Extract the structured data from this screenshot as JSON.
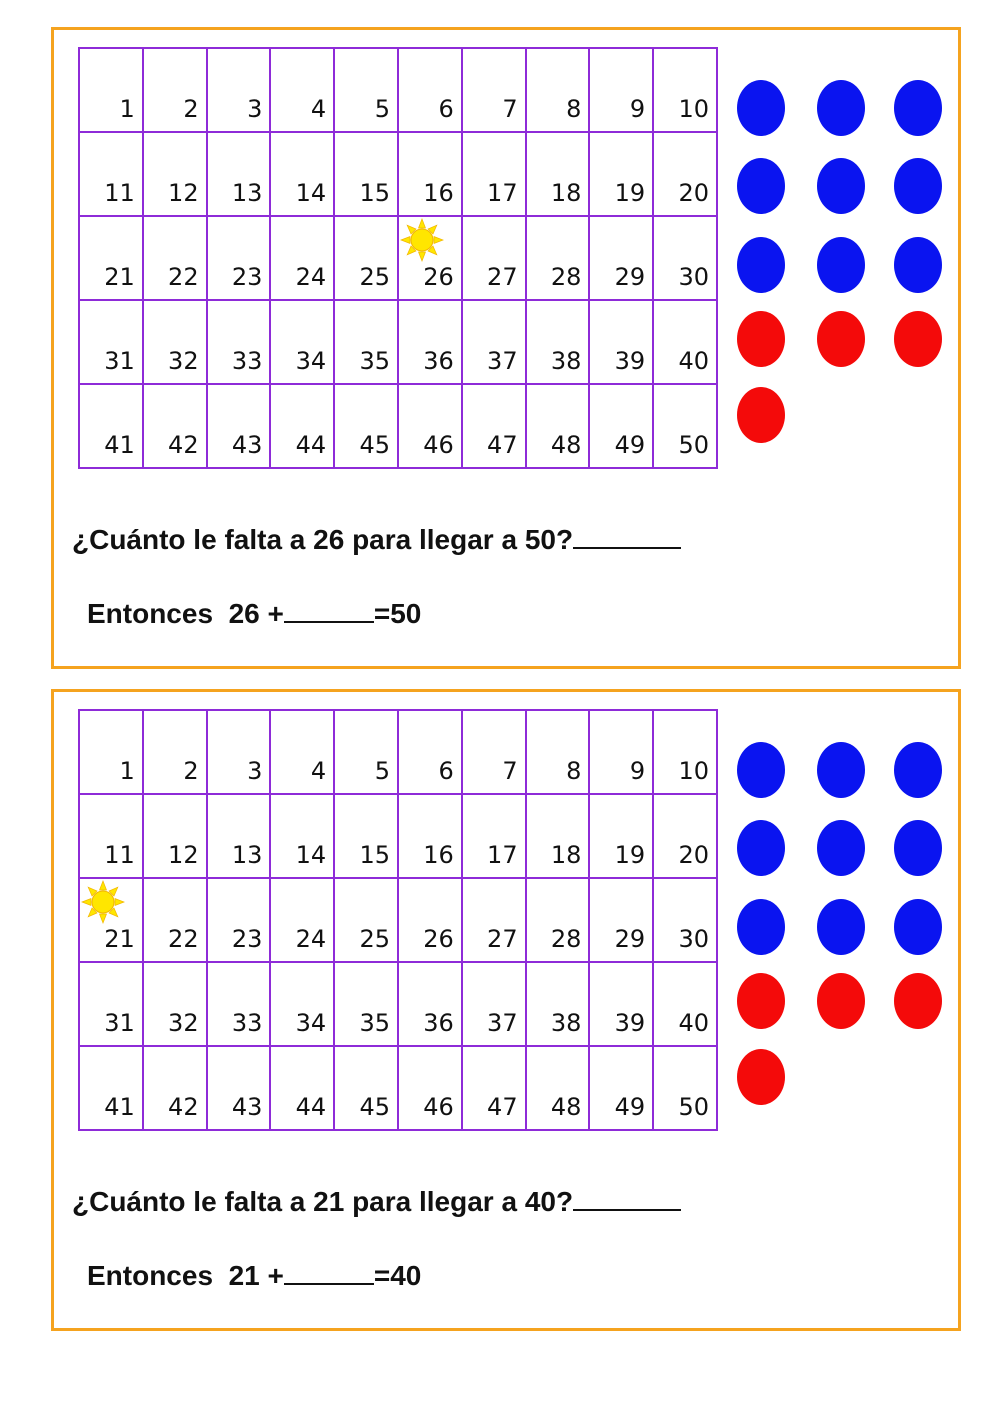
{
  "colors": {
    "border": "#F5A31F",
    "grid": "#8E2BD8",
    "blue": "#0A14F0",
    "red": "#F40A0A",
    "sun": "#FFE600"
  },
  "panels": [
    {
      "start": 26,
      "target": 50,
      "sun_on": 26,
      "question": "¿Cuánto le falta a 26 para llegar a 50?",
      "then_label": "Entonces",
      "then_expr": "26 +",
      "then_result": "=50",
      "dots": {
        "blue": 9,
        "red": 4
      }
    },
    {
      "start": 21,
      "target": 40,
      "sun_on": 21,
      "question": "¿Cuánto le falta a 21 para llegar a 40?",
      "then_label": "Entonces",
      "then_expr": "21 +",
      "then_result": "=40",
      "dots": {
        "blue": 9,
        "red": 4
      }
    }
  ],
  "grid_numbers": [
    1,
    2,
    3,
    4,
    5,
    6,
    7,
    8,
    9,
    10,
    11,
    12,
    13,
    14,
    15,
    16,
    17,
    18,
    19,
    20,
    21,
    22,
    23,
    24,
    25,
    26,
    27,
    28,
    29,
    30,
    31,
    32,
    33,
    34,
    35,
    36,
    37,
    38,
    39,
    40,
    41,
    42,
    43,
    44,
    45,
    46,
    47,
    48,
    49,
    50
  ],
  "sun_icon": "sun-icon"
}
